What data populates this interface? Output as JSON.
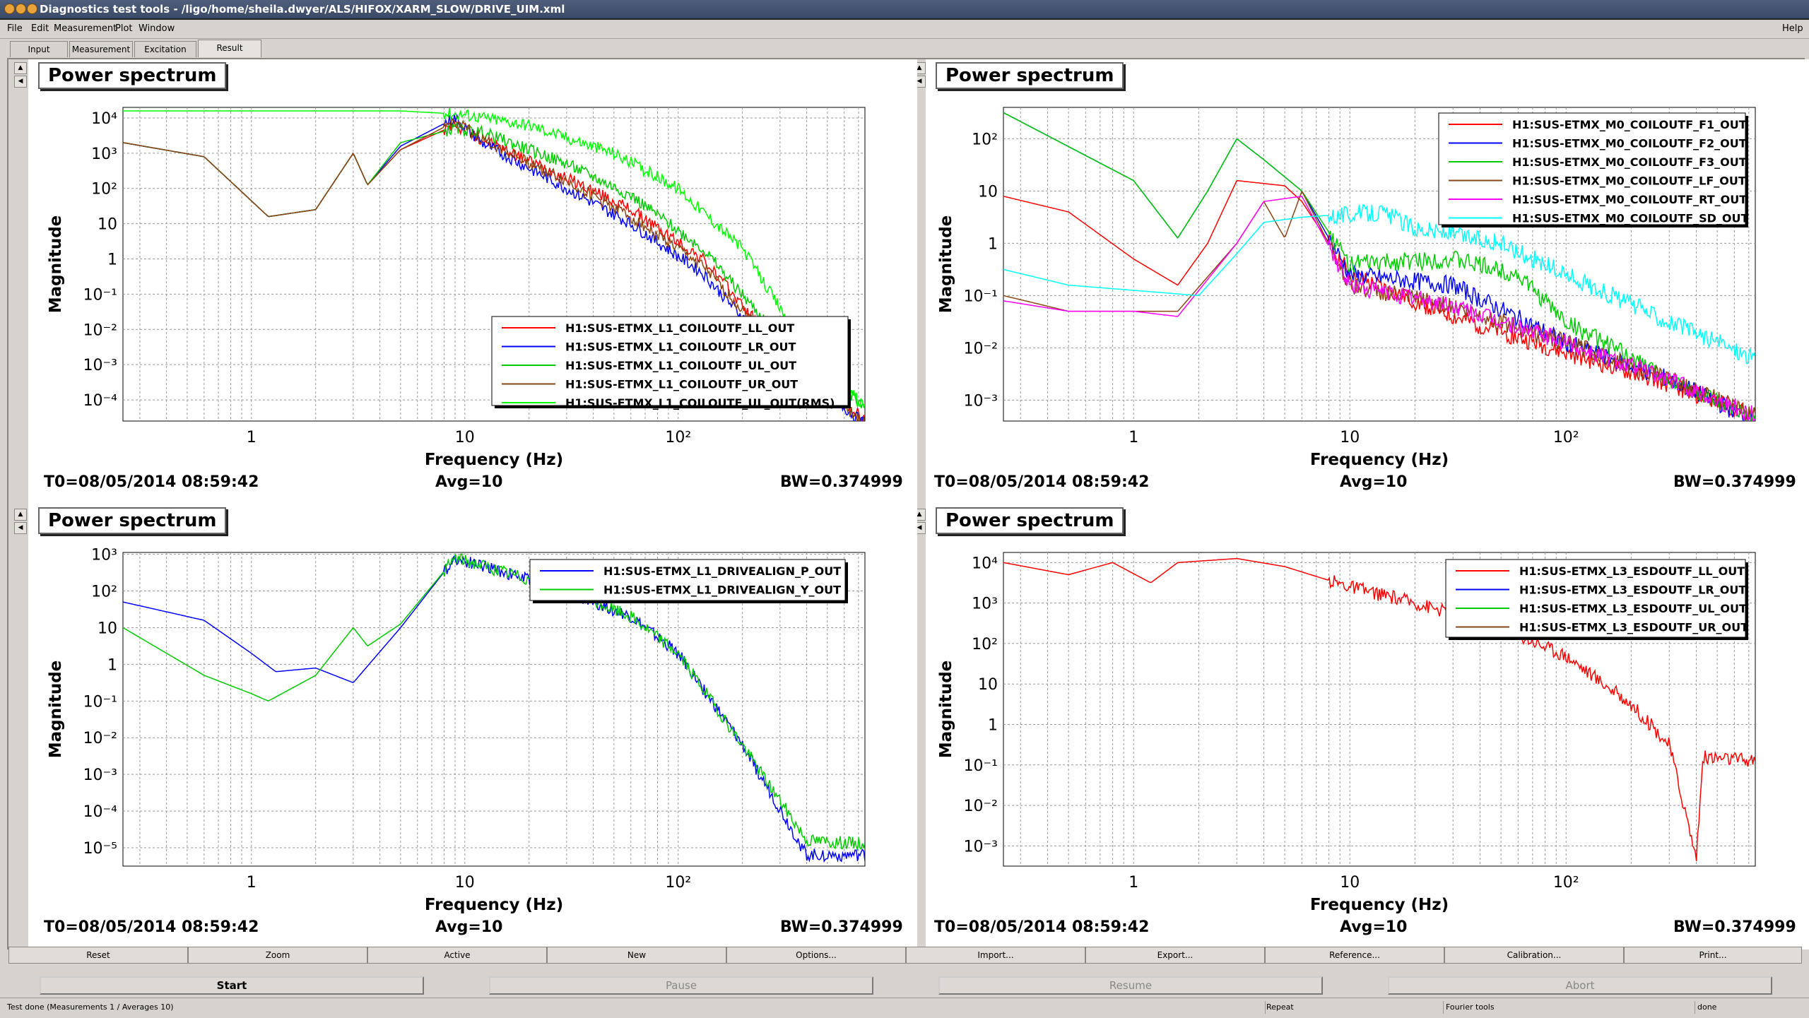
{
  "window": {
    "title": "Diagnostics test tools - /ligo/home/sheila.dwyer/ALS/HIFOX/XARM_SLOW/DRIVE_UIM.xml"
  },
  "menu": [
    "File",
    "Edit",
    "Measurement",
    "Plot",
    "Window"
  ],
  "help_menu": "Help",
  "tabs": [
    "Input",
    "Measurement",
    "Excitation",
    "Result"
  ],
  "panels": [
    {
      "title": "Power spectrum",
      "t0": "T0=08/05/2014 08:59:42",
      "avg": "Avg=10",
      "bw": "BW=0.374999",
      "ylabel": "Magnitude",
      "xlabel": "Frequency (Hz)",
      "ydecades": [
        -4,
        -3,
        -2,
        -1,
        0,
        1,
        2,
        3,
        4
      ],
      "legend": [
        {
          "name": "H1:SUS-ETMX_L1_COILOUTF_LL_OUT",
          "color": "#ff0000"
        },
        {
          "name": "H1:SUS-ETMX_L1_COILOUTF_LR_OUT",
          "color": "#0000ff"
        },
        {
          "name": "H1:SUS-ETMX_L1_COILOUTF_UL_OUT",
          "color": "#00cc00"
        },
        {
          "name": "H1:SUS-ETMX_L1_COILOUTF_UR_OUT",
          "color": "#8b4513"
        },
        {
          "name": "H1:SUS-ETMX_L1_COILOUTF_UL_OUT(RMS)",
          "color": "#00ff00"
        }
      ]
    },
    {
      "title": "Power spectrum",
      "t0": "T0=08/05/2014 08:59:42",
      "avg": "Avg=10",
      "bw": "BW=0.374999",
      "ylabel": "Magnitude",
      "xlabel": "Frequency (Hz)",
      "ydecades": [
        -3,
        -2,
        -1,
        0,
        1,
        2
      ],
      "legend": [
        {
          "name": "H1:SUS-ETMX_M0_COILOUTF_F1_OUT",
          "color": "#ff0000"
        },
        {
          "name": "H1:SUS-ETMX_M0_COILOUTF_F2_OUT",
          "color": "#0000ff"
        },
        {
          "name": "H1:SUS-ETMX_M0_COILOUTF_F3_OUT",
          "color": "#00cc00"
        },
        {
          "name": "H1:SUS-ETMX_M0_COILOUTF_LF_OUT",
          "color": "#8b4513"
        },
        {
          "name": "H1:SUS-ETMX_M0_COILOUTF_RT_OUT",
          "color": "#ff00ff"
        },
        {
          "name": "H1:SUS-ETMX_M0_COILOUTF_SD_OUT",
          "color": "#00ffff"
        }
      ]
    },
    {
      "title": "Power spectrum",
      "t0": "T0=08/05/2014 08:59:42",
      "avg": "Avg=10",
      "bw": "BW=0.374999",
      "ylabel": "Magnitude",
      "xlabel": "Frequency (Hz)",
      "ydecades": [
        -5,
        -4,
        -3,
        -2,
        -1,
        0,
        1,
        2,
        3
      ],
      "legend": [
        {
          "name": "H1:SUS-ETMX_L1_DRIVEALIGN_P_OUT",
          "color": "#0000ff"
        },
        {
          "name": "H1:SUS-ETMX_L1_DRIVEALIGN_Y_OUT",
          "color": "#00cc00"
        }
      ]
    },
    {
      "title": "Power spectrum",
      "t0": "T0=08/05/2014 08:59:42",
      "avg": "Avg=10",
      "bw": "BW=0.374999",
      "ylabel": "Magnitude",
      "xlabel": "Frequency (Hz)",
      "ydecades": [
        -3,
        -2,
        -1,
        0,
        1,
        2,
        3,
        4
      ],
      "legend": [
        {
          "name": "H1:SUS-ETMX_L3_ESDOUTF_LL_OUT",
          "color": "#ff0000"
        },
        {
          "name": "H1:SUS-ETMX_L3_ESDOUTF_LR_OUT",
          "color": "#0000ff"
        },
        {
          "name": "H1:SUS-ETMX_L3_ESDOUTF_UL_OUT",
          "color": "#00cc00"
        },
        {
          "name": "H1:SUS-ETMX_L3_ESDOUTF_UR_OUT",
          "color": "#8b4513"
        }
      ]
    }
  ],
  "xticks": [
    "1",
    "10",
    "10²"
  ],
  "plot_buttons": [
    "Reset",
    "Zoom",
    "Active",
    "New",
    "Options...",
    "Import...",
    "Export...",
    "Reference...",
    "Calibration...",
    "Print..."
  ],
  "control_buttons": [
    "Start",
    "Pause",
    "Resume",
    "Abort"
  ],
  "status": {
    "message": "Test done (Measurements 1 / Averages 10)",
    "repeat": "Repeat",
    "tool": "Fourier tools",
    "state": "done"
  }
}
